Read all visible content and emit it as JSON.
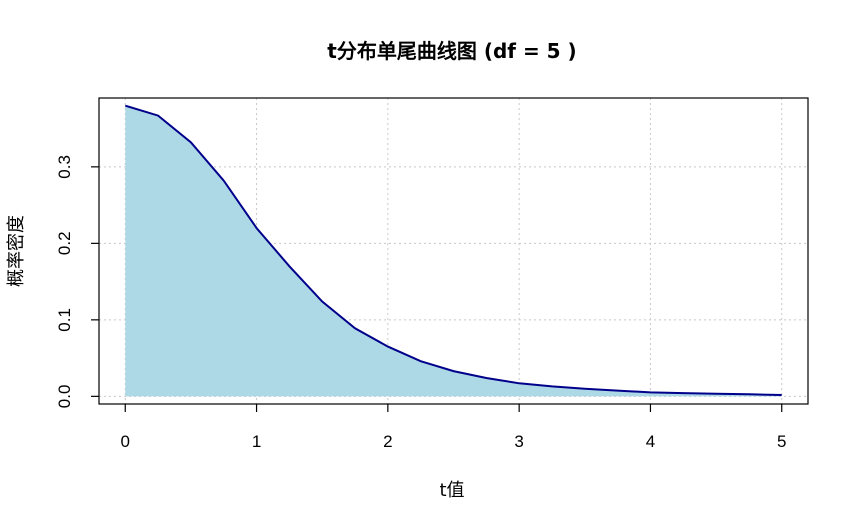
{
  "chart_data": {
    "type": "area",
    "title": "t分布单尾曲线图 (df = 5 )",
    "xlabel": "t值",
    "ylabel": "概率密度",
    "df": 5,
    "xlim": [
      -0.2,
      5.2
    ],
    "ylim": [
      -0.01,
      0.39
    ],
    "xticks": [
      "0",
      "1",
      "2",
      "3",
      "4",
      "5"
    ],
    "yticks": [
      "0.0",
      "0.1",
      "0.2",
      "0.3"
    ],
    "grid": true,
    "colors": {
      "fill": "#add8e6",
      "line": "#00008b",
      "grid": "#c8c8c8"
    },
    "series": [
      {
        "x": [
          0,
          0.25,
          0.5,
          0.75,
          1,
          1.25,
          1.5,
          1.75,
          2,
          2.25,
          2.5,
          2.75,
          3,
          3.25,
          3.5,
          3.75,
          4,
          4.25,
          4.5,
          4.75,
          5
        ],
        "y": [
          0.38,
          0.367,
          0.332,
          0.282,
          0.22,
          0.17,
          0.124,
          0.089,
          0.065,
          0.046,
          0.033,
          0.024,
          0.017,
          0.013,
          0.01,
          0.0075,
          0.0051,
          0.0042,
          0.0034,
          0.0027,
          0.0018
        ]
      }
    ]
  }
}
